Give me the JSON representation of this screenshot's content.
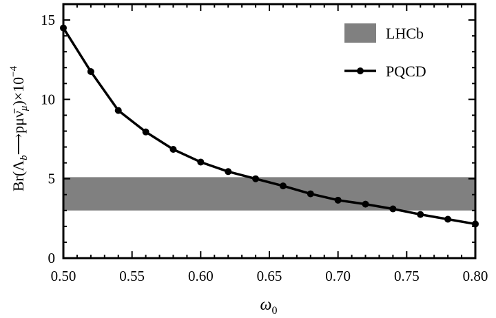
{
  "chart_data": {
    "type": "line",
    "title": "",
    "xlabel": "ω0",
    "ylabel": "Br(Λb→pμν̄μ)×10^-4",
    "xlim": [
      0.5,
      0.8
    ],
    "ylim": [
      0,
      16
    ],
    "x_ticks": [
      "0.50",
      "0.55",
      "0.60",
      "0.65",
      "0.70",
      "0.75",
      "0.80"
    ],
    "y_ticks": [
      "0",
      "5",
      "10",
      "15"
    ],
    "grid": false,
    "legend_position": "top-right",
    "band": {
      "name": "LHCb",
      "y_low": 3.0,
      "y_high": 5.1,
      "color": "#808080"
    },
    "series": [
      {
        "name": "PQCD",
        "color": "#000000",
        "marker": "circle",
        "x": [
          0.5,
          0.52,
          0.54,
          0.56,
          0.58,
          0.6,
          0.62,
          0.64,
          0.66,
          0.68,
          0.7,
          0.72,
          0.74,
          0.76,
          0.78,
          0.8
        ],
        "y": [
          14.5,
          11.75,
          9.3,
          7.95,
          6.85,
          6.05,
          5.45,
          5.0,
          4.55,
          4.05,
          3.65,
          3.4,
          3.1,
          2.75,
          2.45,
          2.15
        ]
      }
    ]
  }
}
